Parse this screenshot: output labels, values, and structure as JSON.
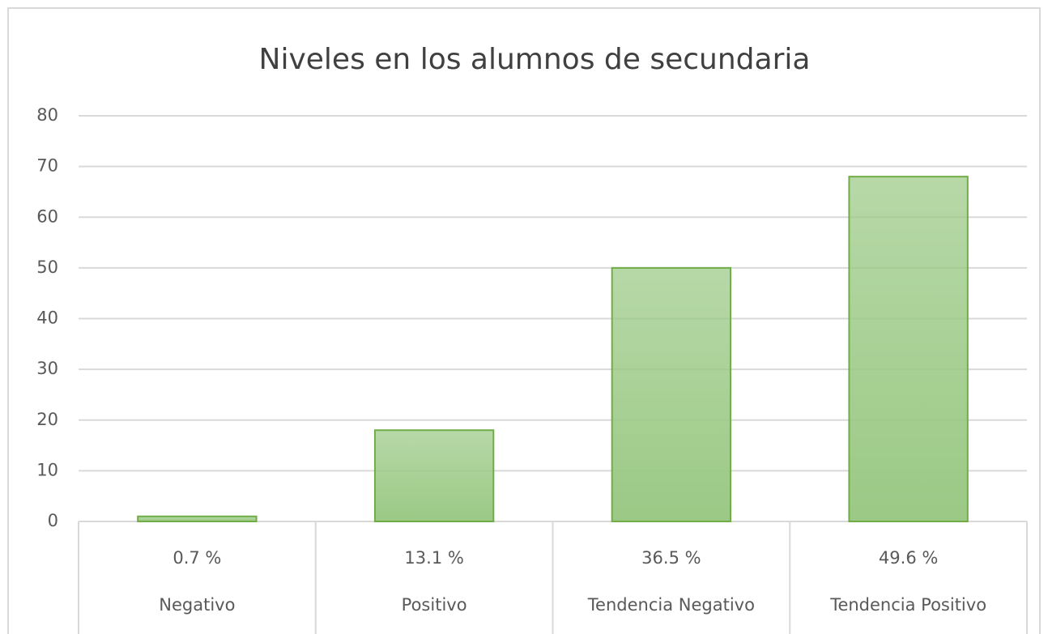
{
  "chart_data": {
    "type": "bar",
    "title": "Niveles en los alumnos de secundaria",
    "categories": [
      "Negativo",
      "Positivo",
      "Tendencia Negativo",
      "Tendencia Positivo"
    ],
    "percent_labels": [
      "0.7 %",
      "13.1 %",
      "36.5 %",
      "49.6 %"
    ],
    "values": [
      1,
      18,
      50,
      68
    ],
    "color": "#9bc985",
    "edge_color": "#70ad47",
    "ylim": [
      0,
      80
    ],
    "yticks": [
      0,
      10,
      20,
      30,
      40,
      50,
      60,
      70,
      80
    ],
    "grid": true
  }
}
